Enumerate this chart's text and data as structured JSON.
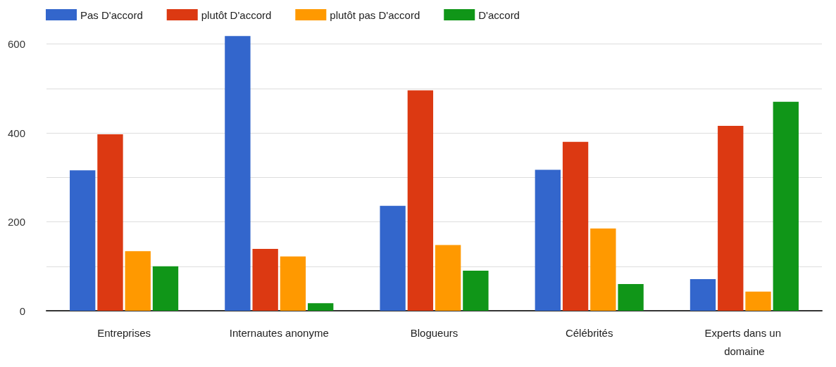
{
  "chart_data": {
    "type": "bar",
    "categories": [
      "Entreprises",
      "Internautes anonyme",
      "Blogueurs",
      "Célébrités",
      "Experts dans un domaine"
    ],
    "series": [
      {
        "name": "Pas D'accord",
        "color": "#3366cc",
        "values": [
          316,
          618,
          236,
          317,
          71
        ]
      },
      {
        "name": "plutôt D'accord",
        "color": "#dc3912",
        "values": [
          397,
          139,
          496,
          380,
          416
        ]
      },
      {
        "name": "plutôt pas D'accord",
        "color": "#ff9900",
        "values": [
          134,
          122,
          148,
          185,
          43
        ]
      },
      {
        "name": "D'accord",
        "color": "#109618",
        "values": [
          100,
          17,
          90,
          60,
          470
        ]
      }
    ],
    "ylim": [
      0,
      620
    ],
    "yticks": [
      0,
      {
        "value": 100,
        "label": null
      },
      200,
      {
        "value": 300,
        "label": null
      },
      400,
      {
        "value": 500,
        "label": null
      },
      600
    ],
    "grid": "y",
    "legend": "top left"
  }
}
